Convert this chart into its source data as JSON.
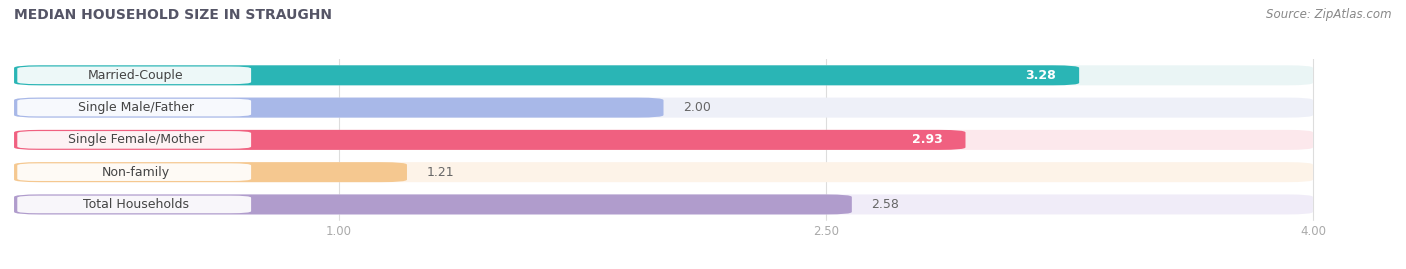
{
  "title": "MEDIAN HOUSEHOLD SIZE IN STRAUGHN",
  "source": "Source: ZipAtlas.com",
  "categories": [
    "Married-Couple",
    "Single Male/Father",
    "Single Female/Mother",
    "Non-family",
    "Total Households"
  ],
  "values": [
    3.28,
    2.0,
    2.93,
    1.21,
    2.58
  ],
  "bar_colors": [
    "#2ab5b5",
    "#a8b8e8",
    "#f06080",
    "#f5c890",
    "#b09ccc"
  ],
  "bg_colors": [
    "#eaf5f5",
    "#eef0f8",
    "#fce8ec",
    "#fdf3e8",
    "#f0ecf8"
  ],
  "value_text_colors": [
    "white",
    "#888888",
    "white",
    "#888888",
    "#888888"
  ],
  "xlim_min": 0,
  "xlim_max": 4.2,
  "xaxis_min": 0,
  "xaxis_max": 4.0,
  "xticks": [
    1.0,
    2.5,
    4.0
  ],
  "bar_height": 0.62,
  "bar_gap": 0.38,
  "label_fontsize": 9,
  "value_fontsize": 9,
  "title_fontsize": 10,
  "source_fontsize": 8.5,
  "title_color": "#555566",
  "source_color": "#888888",
  "tick_color": "#aaaaaa",
  "grid_color": "#dddddd"
}
